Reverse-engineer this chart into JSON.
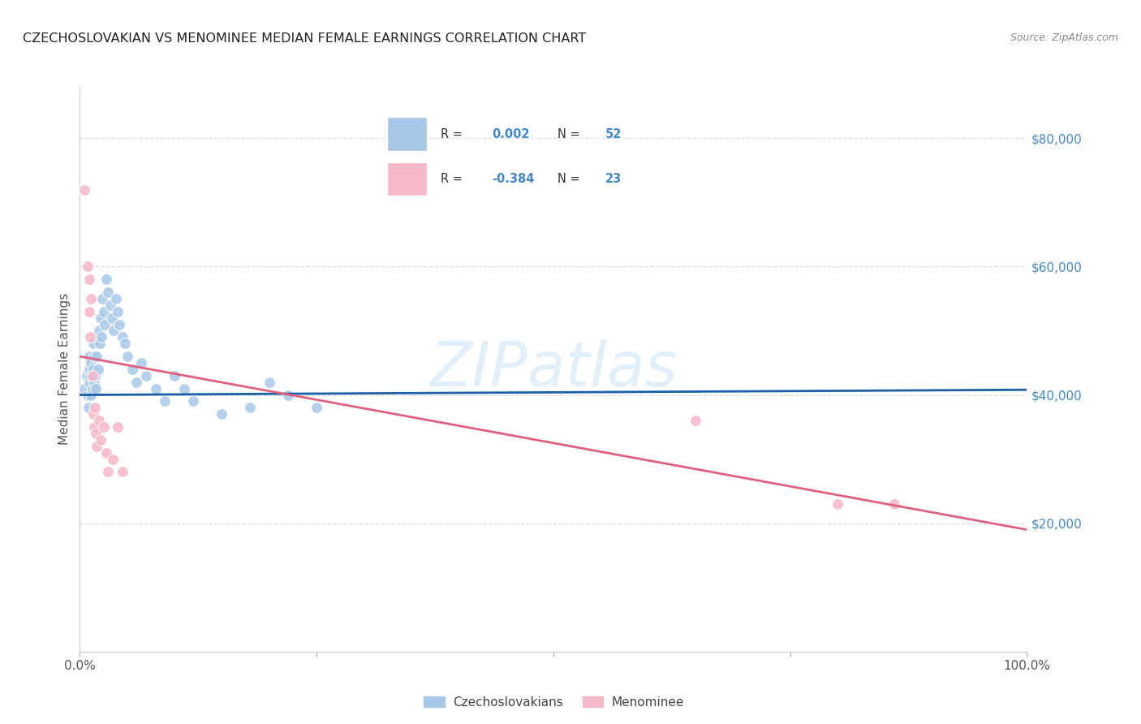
{
  "title": "CZECHOSLOVAKIAN VS MENOMINEE MEDIAN FEMALE EARNINGS CORRELATION CHART",
  "source": "Source: ZipAtlas.com",
  "ylabel": "Median Female Earnings",
  "watermark": "ZIPatlas",
  "legend_label1": "Czechoslovakians",
  "legend_label2": "Menominee",
  "r1": "0.002",
  "n1": "52",
  "r2": "-0.384",
  "n2": "23",
  "color_blue": "#a8c8e8",
  "color_blue_line": "#1a5fa8",
  "color_pink": "#f5b8c8",
  "color_pink_line": "#e06080",
  "color_text_blue": "#4488cc",
  "color_text_r2": "#cc4466",
  "ytick_labels": [
    "$20,000",
    "$40,000",
    "$60,000",
    "$80,000"
  ],
  "ytick_values": [
    20000,
    40000,
    60000,
    80000
  ],
  "ylim": [
    0,
    88000
  ],
  "xlim": [
    0.0,
    1.0
  ],
  "blue_x": [
    0.005,
    0.007,
    0.008,
    0.009,
    0.01,
    0.01,
    0.01,
    0.011,
    0.012,
    0.012,
    0.013,
    0.013,
    0.014,
    0.014,
    0.015,
    0.015,
    0.016,
    0.017,
    0.018,
    0.019,
    0.02,
    0.021,
    0.022,
    0.023,
    0.024,
    0.025,
    0.026,
    0.028,
    0.03,
    0.032,
    0.034,
    0.036,
    0.038,
    0.04,
    0.042,
    0.045,
    0.048,
    0.05,
    0.055,
    0.06,
    0.065,
    0.07,
    0.08,
    0.09,
    0.1,
    0.11,
    0.12,
    0.15,
    0.18,
    0.2,
    0.22,
    0.25
  ],
  "blue_y": [
    41000,
    43000,
    40000,
    38000,
    42000,
    44000,
    46000,
    43000,
    40000,
    45000,
    41000,
    43000,
    48000,
    44000,
    46000,
    42000,
    43000,
    41000,
    46000,
    44000,
    50000,
    48000,
    52000,
    49000,
    55000,
    53000,
    51000,
    58000,
    56000,
    54000,
    52000,
    50000,
    55000,
    53000,
    51000,
    49000,
    48000,
    46000,
    44000,
    42000,
    45000,
    43000,
    41000,
    39000,
    43000,
    41000,
    39000,
    37000,
    38000,
    42000,
    40000,
    38000
  ],
  "pink_x": [
    0.005,
    0.008,
    0.01,
    0.01,
    0.011,
    0.012,
    0.013,
    0.014,
    0.015,
    0.016,
    0.017,
    0.018,
    0.02,
    0.022,
    0.025,
    0.028,
    0.03,
    0.035,
    0.04,
    0.045,
    0.65,
    0.8,
    0.86
  ],
  "pink_y": [
    72000,
    60000,
    58000,
    53000,
    49000,
    55000,
    43000,
    37000,
    35000,
    38000,
    34000,
    32000,
    36000,
    33000,
    35000,
    31000,
    28000,
    30000,
    35000,
    28000,
    36000,
    23000,
    23000
  ],
  "blue_line_x": [
    0.0,
    1.0
  ],
  "blue_line_y": [
    40000,
    40800
  ],
  "pink_line_x": [
    0.0,
    1.0
  ],
  "pink_line_y": [
    46000,
    19000
  ],
  "grid_color": "#dddddd",
  "bg_color": "#ffffff",
  "marker_size": 100,
  "title_fontsize": 11.5,
  "axis_label_fontsize": 11,
  "tick_fontsize": 11
}
